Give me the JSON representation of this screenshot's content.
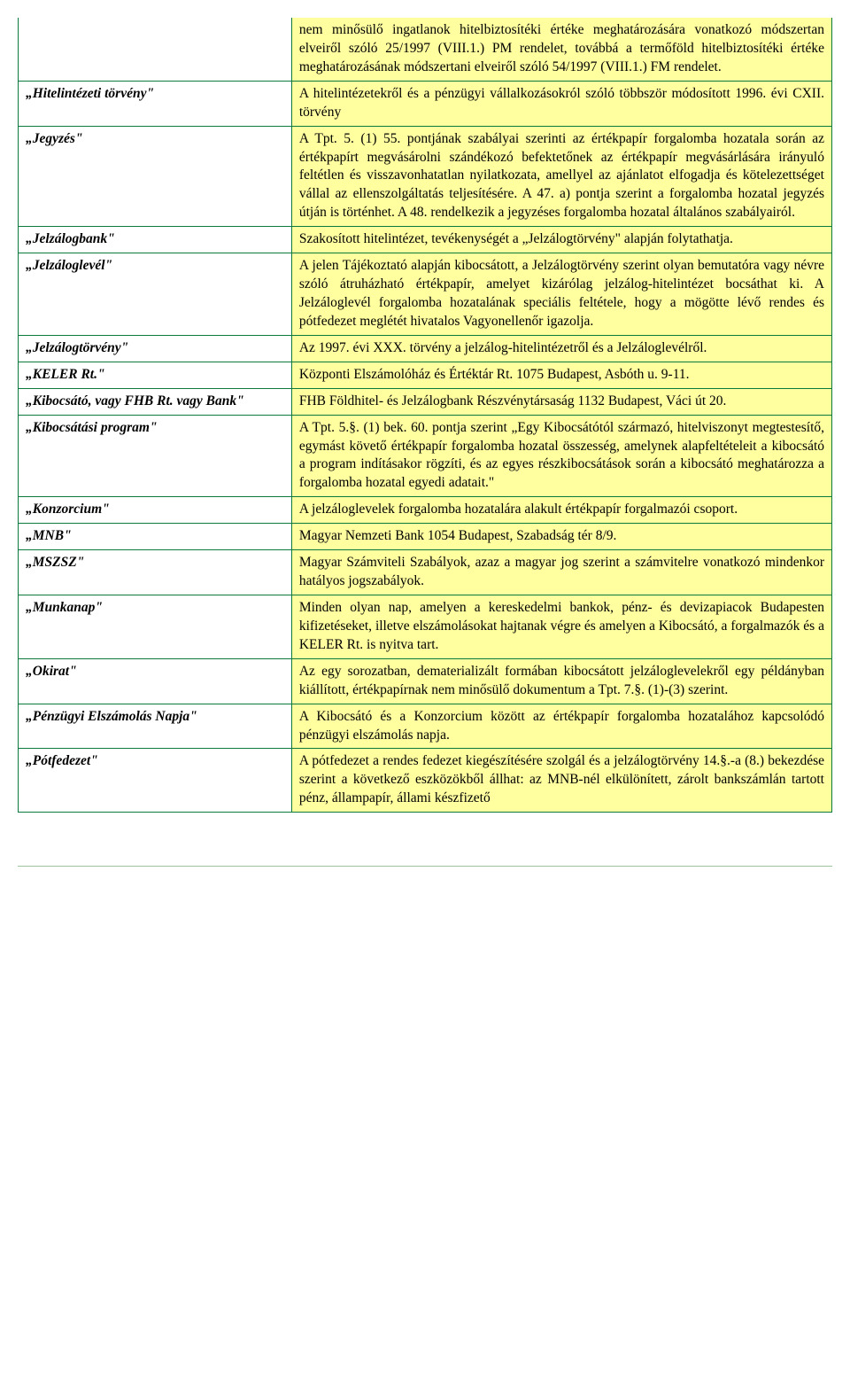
{
  "colors": {
    "border": "#0b7a3c",
    "def_bg": "#ffffa0",
    "page_bg": "#ffffff",
    "text": "#000000",
    "bottom_rule": "#9cc39c"
  },
  "typography": {
    "family": "Times New Roman",
    "size_pt": 12,
    "line_height": 1.35
  },
  "layout": {
    "term_col_width_pct": 33,
    "def_col_width_pct": 67
  },
  "pre_row": {
    "term": "",
    "definition": "nem minősülő ingatlanok hitelbiztosítéki értéke meghatározására vonatkozó módszertan elveiről szóló 25/1997 (VIII.1.) PM rendelet, továbbá a termőföld hitelbiztosítéki értéke meghatározásának módszertani elveiről szóló 54/1997 (VIII.1.) FM rendelet."
  },
  "rows": [
    {
      "term": "„Hitelintézeti törvény\"",
      "definition": "A hitelintézetekről és a pénzügyi vállalkozásokról szóló többször módosított 1996. évi CXII. törvény"
    },
    {
      "term": "„Jegyzés\"",
      "definition": "A Tpt. 5. (1) 55. pontjának szabályai szerinti az értékpapír forgalomba hozatala során az értékpapírt megvásárolni szándékozó befektetőnek az értékpapír megvásárlására irányuló feltétlen és visszavonhatatlan nyilatkozata, amellyel az ajánlatot elfogadja és kötelezettséget vállal az ellenszolgáltatás teljesítésére. A 47. a) pontja szerint a forgalomba hozatal jegyzés útján is történhet. A 48. rendelkezik a jegyzéses forgalomba hozatal általános szabályairól."
    },
    {
      "term": "„Jelzálogbank\"",
      "definition": "Szakosított hitelintézet, tevékenységét a „Jelzálogtörvény\" alapján folytathatja."
    },
    {
      "term": "„Jelzáloglevél\"",
      "definition": "A jelen Tájékoztató alapján kibocsátott, a Jelzálogtörvény szerint olyan bemutatóra vagy névre szóló átruházható értékpapír, amelyet kizárólag jelzálog-hitelintézet bocsáthat ki. A Jelzáloglevél forgalomba hozatalának speciális feltétele, hogy a mögötte lévő rendes és pótfedezet meglétét hivatalos Vagyonellenőr igazolja."
    },
    {
      "term": "„Jelzálogtörvény\"",
      "definition": "Az 1997. évi XXX. törvény a jelzálog-hitelintézetről és a Jelzáloglevélről."
    },
    {
      "term": "„KELER Rt.\"",
      "definition": "Központi Elszámolóház és Értéktár Rt. 1075 Budapest, Asbóth u. 9-11."
    },
    {
      "term": "„Kibocsátó, vagy FHB Rt. vagy Bank\"",
      "definition": "FHB Földhitel- és Jelzálogbank Részvénytársaság 1132 Budapest, Váci út 20."
    },
    {
      "term": "„Kibocsátási program\"",
      "definition": "A Tpt. 5.§. (1) bek. 60. pontja szerint „Egy Kibocsátótól származó, hitelviszonyt megtestesítő, egymást követő értékpapír forgalomba hozatal összesség, amelynek alapfeltételeit a kibocsátó a program indításakor rögzíti, és az egyes részkibocsátások során a kibocsátó meghatározza a forgalomba hozatal egyedi adatait.\""
    },
    {
      "term": "„Konzorcium\"",
      "definition": "A jelzáloglevelek forgalomba hozatalára alakult értékpapír forgalmazói csoport."
    },
    {
      "term": "„MNB\"",
      "definition": "Magyar Nemzeti Bank 1054 Budapest, Szabadság tér 8/9."
    },
    {
      "term": "„MSZSZ\"",
      "definition": "Magyar Számviteli Szabályok, azaz a magyar jog szerint a számvitelre vonatkozó mindenkor hatályos jogszabályok."
    },
    {
      "term": "„Munkanap\"",
      "definition": "Minden olyan nap, amelyen a kereskedelmi bankok, pénz- és devizapiacok Budapesten kifizetéseket, illetve elszámolásokat hajtanak végre és amelyen a Kibocsátó, a forgalmazók és a KELER Rt. is nyitva tart."
    },
    {
      "term": "„Okirat\"",
      "definition": "Az egy sorozatban, dematerializált formában kibocsátott jelzáloglevelekről egy példányban kiállított, értékpapírnak nem minősülő dokumentum a Tpt. 7.§. (1)-(3) szerint."
    },
    {
      "term": "„Pénzügyi Elszámolás Napja\"",
      "definition": "A Kibocsátó és a Konzorcium között az értékpapír forgalomba hozatalához kapcsolódó pénzügyi elszámolás napja."
    },
    {
      "term": "„Pótfedezet\"",
      "definition": "A pótfedezet a rendes fedezet kiegészítésére szolgál és a jelzálogtörvény 14.§.-a (8.) bekezdése szerint a következő eszközökből állhat: az MNB-nél elkülönített, zárolt bankszámlán tartott pénz, állampapír, állami készfizető"
    }
  ]
}
